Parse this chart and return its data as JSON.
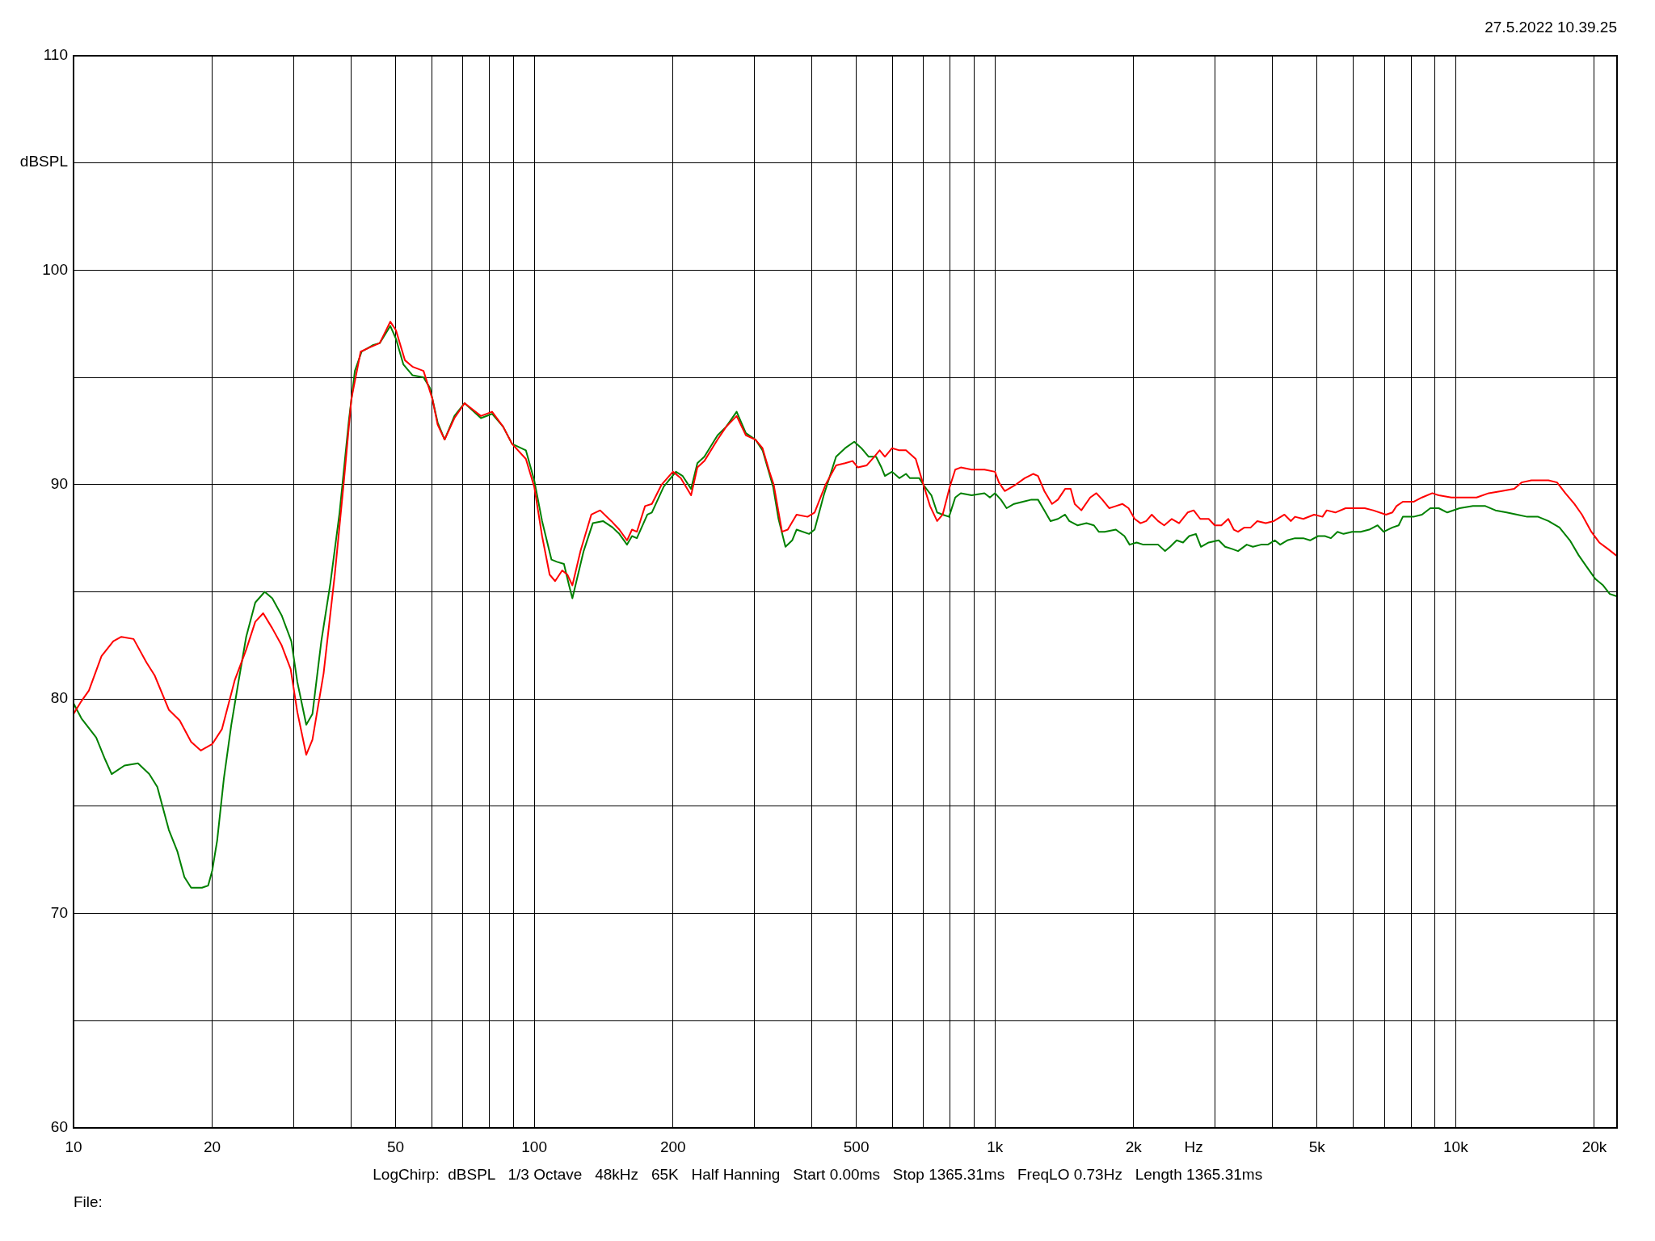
{
  "chart_data": {
    "type": "line",
    "subtitle": "27.5.2022 10.39.25",
    "xlabel": "Hz",
    "ylabel": "dBSPL",
    "annotations": [
      "LogChirp:  dBSPL   1/3 Octave   48kHz   65K   Half Hanning   Start 0.00ms   Stop 1365.31ms   FreqLO 0.73Hz   Length 1365.31ms",
      "File:"
    ],
    "log": "x",
    "grid": true,
    "legend": false,
    "marker": "none",
    "line_style": "solid",
    "xlim": [
      10,
      22400
    ],
    "ylim": [
      60,
      110
    ],
    "xticks": [
      10,
      20,
      {
        "value": 30,
        "label": null
      },
      {
        "value": 40,
        "label": null
      },
      50,
      {
        "value": 60,
        "label": null
      },
      {
        "value": 70,
        "label": null
      },
      {
        "value": 80,
        "label": null
      },
      {
        "value": 90,
        "label": null
      },
      100,
      200,
      {
        "value": 300,
        "label": null
      },
      {
        "value": 400,
        "label": null
      },
      500,
      {
        "value": 600,
        "label": null
      },
      {
        "value": 700,
        "label": null
      },
      {
        "value": 800,
        "label": null
      },
      {
        "value": 900,
        "label": null
      },
      {
        "value": 1000,
        "label": "1k"
      },
      {
        "value": 2000,
        "label": "2k"
      },
      {
        "value": 3000,
        "label": null
      },
      {
        "value": 4000,
        "label": null
      },
      {
        "value": 5000,
        "label": "5k"
      },
      {
        "value": 6000,
        "label": null
      },
      {
        "value": 7000,
        "label": null
      },
      {
        "value": 8000,
        "label": null
      },
      {
        "value": 9000,
        "label": null
      },
      {
        "value": 10000,
        "label": "10k"
      },
      {
        "value": 20000,
        "label": "20k"
      }
    ],
    "yticks": [
      60,
      {
        "value": 65,
        "label": null
      },
      70,
      {
        "value": 75,
        "label": null
      },
      80,
      {
        "value": 85,
        "label": null
      },
      90,
      {
        "value": 95,
        "label": null
      },
      100,
      {
        "value": 105,
        "label": null
      },
      110
    ],
    "series": [
      {
        "color": "#ff0000",
        "x": [
          10,
          10.4,
          10.8,
          11.5,
          12.2,
          12.7,
          13.5,
          14.4,
          15,
          16.1,
          17,
          18,
          18.9,
          20,
          21,
          22.4,
          23.7,
          24.8,
          25.8,
          27,
          28.3,
          29.6,
          30.6,
          32,
          33,
          34.9,
          36.9,
          38.6,
          40.1,
          42,
          44,
          46.2,
          48.7,
          50.1,
          52.4,
          54.4,
          57.5,
          60.1,
          61.7,
          63.9,
          67.1,
          70.6,
          76.6,
          81,
          85.6,
          89.5,
          95.9,
          100,
          104,
          108,
          111,
          115,
          118,
          121,
          126,
          133,
          139,
          147,
          153,
          159,
          163,
          167,
          174,
          180,
          189,
          200,
          208,
          219,
          226,
          234,
          250,
          261,
          275,
          288,
          302,
          313,
          324,
          331,
          345,
          355,
          371,
          392,
          406,
          429,
          452,
          473,
          491,
          504,
          527,
          547,
          562,
          577,
          598,
          620,
          641,
          673,
          697,
          723,
          749,
          770,
          798,
          820,
          843,
          890,
          949,
          1000,
          1020,
          1050,
          1110,
          1160,
          1210,
          1240,
          1280,
          1330,
          1370,
          1420,
          1460,
          1490,
          1540,
          1610,
          1660,
          1710,
          1770,
          1830,
          1890,
          1950,
          2010,
          2070,
          2130,
          2190,
          2260,
          2330,
          2420,
          2510,
          2620,
          2700,
          2790,
          2910,
          3000,
          3100,
          3210,
          3300,
          3370,
          3480,
          3590,
          3710,
          3870,
          4030,
          4250,
          4390,
          4480,
          4670,
          4930,
          5140,
          5250,
          5480,
          5770,
          6090,
          6350,
          6620,
          7060,
          7290,
          7440,
          7680,
          8100,
          8450,
          8900,
          9190,
          9790,
          10400,
          11100,
          11800,
          12600,
          13400,
          13900,
          14600,
          15900,
          16600,
          17300,
          18100,
          18800,
          19700,
          20500,
          21400,
          22300
        ],
        "values": [
          79.3,
          79.9,
          80.4,
          82.0,
          82.7,
          82.9,
          82.8,
          81.7,
          81.1,
          79.5,
          79.0,
          78.0,
          77.6,
          77.9,
          78.6,
          80.9,
          82.3,
          83.6,
          84.0,
          83.3,
          82.5,
          81.4,
          79.4,
          77.4,
          78.1,
          81.2,
          85.8,
          90.1,
          94.0,
          96.2,
          96.4,
          96.6,
          97.6,
          97.2,
          95.8,
          95.5,
          95.3,
          94.0,
          92.8,
          92.1,
          93.1,
          93.8,
          93.2,
          93.4,
          92.7,
          91.9,
          91.2,
          89.9,
          87.6,
          85.8,
          85.5,
          86.0,
          85.8,
          85.3,
          86.9,
          88.6,
          88.8,
          88.3,
          87.9,
          87.4,
          87.9,
          87.8,
          89.0,
          89.1,
          90.0,
          90.6,
          90.3,
          89.5,
          90.8,
          91.1,
          92.1,
          92.7,
          93.2,
          92.3,
          92.1,
          91.7,
          90.6,
          90.0,
          87.8,
          87.9,
          88.6,
          88.5,
          88.7,
          90.0,
          90.9,
          91.0,
          91.1,
          90.8,
          90.9,
          91.3,
          91.6,
          91.3,
          91.7,
          91.6,
          91.6,
          91.2,
          90.1,
          89.0,
          88.3,
          88.6,
          89.9,
          90.7,
          90.8,
          90.7,
          90.7,
          90.6,
          90.1,
          89.7,
          90.0,
          90.3,
          90.5,
          90.4,
          89.7,
          89.1,
          89.3,
          89.8,
          89.8,
          89.1,
          88.8,
          89.4,
          89.6,
          89.3,
          88.9,
          89.0,
          89.1,
          88.9,
          88.4,
          88.2,
          88.3,
          88.6,
          88.3,
          88.1,
          88.4,
          88.2,
          88.7,
          88.8,
          88.4,
          88.4,
          88.1,
          88.1,
          88.4,
          87.9,
          87.8,
          88.0,
          88.0,
          88.3,
          88.2,
          88.3,
          88.6,
          88.3,
          88.5,
          88.4,
          88.6,
          88.5,
          88.8,
          88.7,
          88.9,
          88.9,
          88.9,
          88.8,
          88.6,
          88.7,
          89.0,
          89.2,
          89.2,
          89.4,
          89.6,
          89.5,
          89.4,
          89.4,
          89.4,
          89.6,
          89.7,
          89.8,
          90.1,
          90.2,
          90.2,
          90.1,
          89.6,
          89.1,
          88.6,
          87.8,
          87.3,
          87.0,
          86.7
        ]
      },
      {
        "color": "#008000",
        "x": [
          10,
          10.4,
          11.2,
          11.7,
          12.1,
          12.9,
          13.8,
          14.6,
          15.2,
          16.1,
          16.8,
          17.4,
          18,
          19,
          19.6,
          20,
          20.5,
          21.2,
          22,
          22.8,
          23.7,
          24.8,
          26,
          27,
          28.3,
          29.7,
          30.6,
          32,
          33,
          34.5,
          36.1,
          37.8,
          39.6,
          40.8,
          42.2,
          44.6,
          46.2,
          48.7,
          50.1,
          52,
          54.4,
          57.5,
          59.4,
          61.7,
          63.9,
          67.1,
          70.6,
          76.6,
          81,
          85.6,
          89.5,
          95.9,
          100,
          104,
          109,
          112,
          116,
          119,
          121,
          128,
          134,
          141,
          148,
          153,
          159,
          163,
          167,
          176,
          180,
          191,
          203,
          210,
          219,
          226,
          234,
          250,
          261,
          275,
          288,
          302,
          313,
          330,
          339,
          351,
          363,
          371,
          395,
          406,
          425,
          452,
          473,
          495,
          513,
          532,
          552,
          567,
          577,
          598,
          620,
          641,
          654,
          685,
          704,
          728,
          749,
          770,
          795,
          820,
          843,
          890,
          949,
          975,
          1000,
          1030,
          1060,
          1100,
          1150,
          1200,
          1240,
          1280,
          1320,
          1370,
          1420,
          1450,
          1510,
          1580,
          1640,
          1680,
          1730,
          1830,
          1910,
          1960,
          2030,
          2100,
          2160,
          2260,
          2340,
          2400,
          2480,
          2560,
          2640,
          2730,
          2800,
          2910,
          3060,
          3160,
          3270,
          3370,
          3520,
          3630,
          3780,
          3910,
          4050,
          4160,
          4310,
          4480,
          4670,
          4830,
          5030,
          5200,
          5360,
          5540,
          5710,
          5960,
          6220,
          6490,
          6770,
          6980,
          7290,
          7520,
          7680,
          8100,
          8450,
          8810,
          9190,
          9590,
          10200,
          10900,
          11600,
          12200,
          12900,
          13600,
          14300,
          15100,
          15900,
          16800,
          17700,
          18500,
          19200,
          20100,
          20900,
          21600,
          22300
        ],
        "values": [
          79.8,
          79.1,
          78.2,
          77.2,
          76.5,
          76.9,
          77.0,
          76.5,
          75.9,
          73.9,
          72.9,
          71.7,
          71.2,
          71.2,
          71.3,
          72.0,
          73.4,
          76.3,
          78.8,
          80.8,
          82.9,
          84.5,
          85.0,
          84.7,
          83.9,
          82.7,
          80.8,
          78.8,
          79.3,
          82.7,
          85.4,
          88.7,
          93.0,
          95.3,
          96.2,
          96.5,
          96.6,
          97.4,
          96.8,
          95.6,
          95.1,
          95.0,
          94.5,
          92.9,
          92.1,
          93.2,
          93.8,
          93.1,
          93.3,
          92.7,
          91.9,
          91.6,
          90.2,
          88.3,
          86.5,
          86.4,
          86.3,
          85.3,
          84.7,
          86.9,
          88.2,
          88.3,
          88.0,
          87.7,
          87.2,
          87.6,
          87.5,
          88.6,
          88.7,
          89.9,
          90.6,
          90.4,
          89.8,
          91.0,
          91.3,
          92.3,
          92.7,
          93.4,
          92.4,
          92.1,
          91.6,
          89.9,
          88.4,
          87.1,
          87.4,
          87.9,
          87.7,
          87.9,
          89.5,
          91.3,
          91.7,
          92.0,
          91.7,
          91.3,
          91.3,
          90.8,
          90.4,
          90.6,
          90.3,
          90.5,
          90.3,
          90.3,
          89.9,
          89.5,
          88.7,
          88.6,
          88.5,
          89.4,
          89.6,
          89.5,
          89.6,
          89.4,
          89.6,
          89.3,
          88.9,
          89.1,
          89.2,
          89.3,
          89.3,
          88.8,
          88.3,
          88.4,
          88.6,
          88.3,
          88.1,
          88.2,
          88.1,
          87.8,
          87.8,
          87.9,
          87.6,
          87.2,
          87.3,
          87.2,
          87.2,
          87.2,
          86.9,
          87.1,
          87.4,
          87.3,
          87.6,
          87.7,
          87.1,
          87.3,
          87.4,
          87.1,
          87.0,
          86.9,
          87.2,
          87.1,
          87.2,
          87.2,
          87.4,
          87.2,
          87.4,
          87.5,
          87.5,
          87.4,
          87.6,
          87.6,
          87.5,
          87.8,
          87.7,
          87.8,
          87.8,
          87.9,
          88.1,
          87.8,
          88.0,
          88.1,
          88.5,
          88.5,
          88.6,
          88.9,
          88.9,
          88.7,
          88.9,
          89.0,
          89.0,
          88.8,
          88.7,
          88.6,
          88.5,
          88.5,
          88.3,
          88.0,
          87.4,
          86.7,
          86.2,
          85.6,
          85.3,
          84.9,
          84.8
        ]
      }
    ]
  }
}
